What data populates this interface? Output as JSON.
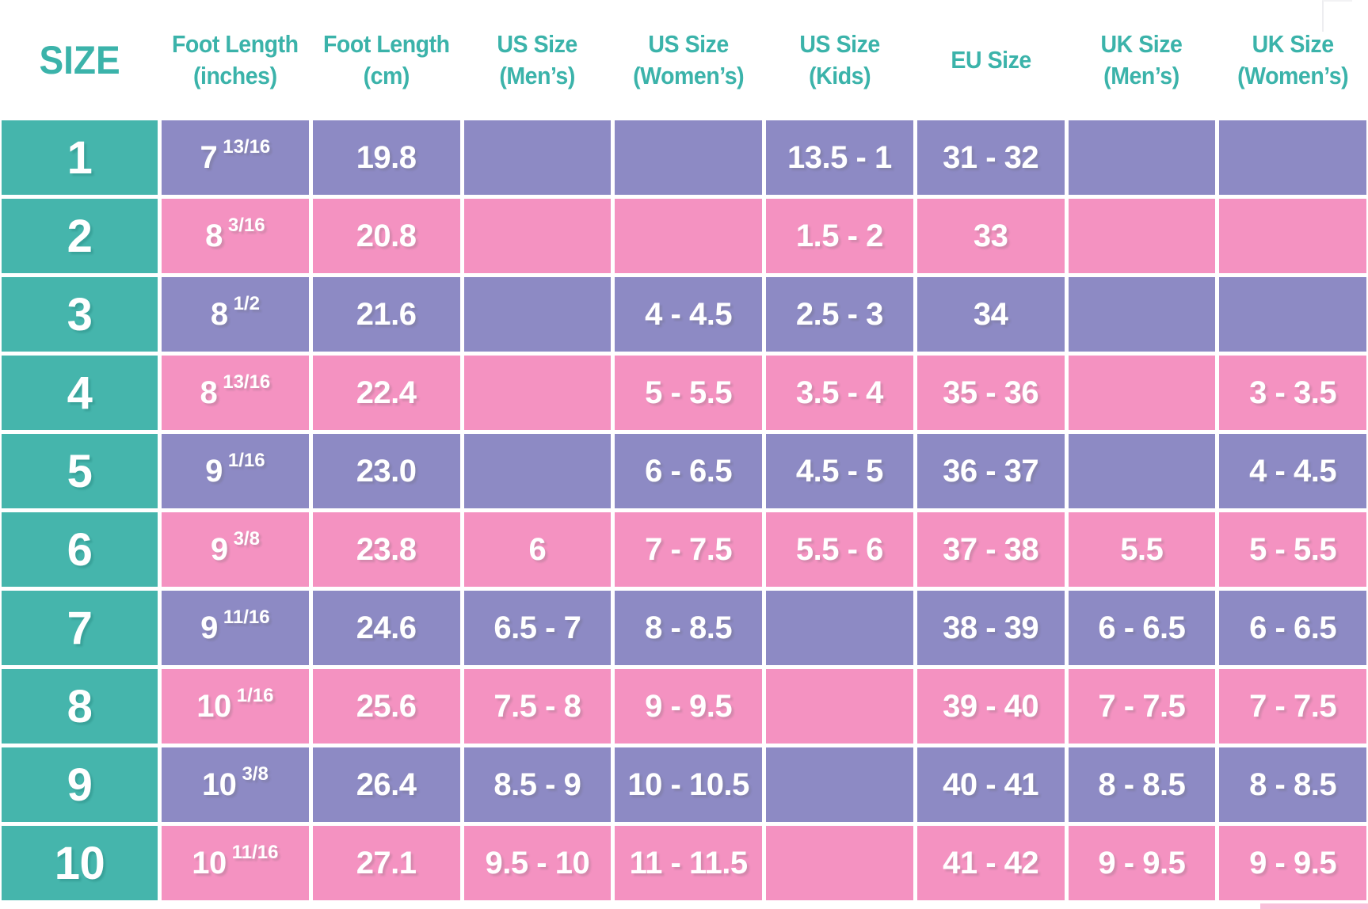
{
  "colors": {
    "teal": "#45b5ac",
    "purple": "#8d8ac4",
    "pink": "#f492c1",
    "header_text": "#3bb3aa",
    "cell_text": "#ffffff"
  },
  "table": {
    "headers": [
      {
        "key": "size",
        "line1": "SIZE",
        "line2": "",
        "big": true
      },
      {
        "key": "inches",
        "line1": "Foot Length",
        "line2": "(inches)"
      },
      {
        "key": "cm",
        "line1": "Foot Length",
        "line2": "(cm)"
      },
      {
        "key": "us-men",
        "line1": "US Size",
        "line2": "(Men’s)"
      },
      {
        "key": "us-women",
        "line1": "US Size",
        "line2": "(Women’s)"
      },
      {
        "key": "us-kids",
        "line1": "US Size",
        "line2": "(Kids)"
      },
      {
        "key": "eu",
        "line1": "EU Size",
        "line2": ""
      },
      {
        "key": "uk-men",
        "line1": "UK Size",
        "line2": "(Men’s)"
      },
      {
        "key": "uk-women",
        "line1": "UK Size",
        "line2": "(Women’s)"
      }
    ],
    "rows": [
      {
        "size": "1",
        "inches_whole": "7",
        "inches_frac": "13/16",
        "cm": "19.8",
        "us_men": "",
        "us_women": "",
        "us_kids": "13.5 - 1",
        "eu": "31 - 32",
        "uk_men": "",
        "uk_women": ""
      },
      {
        "size": "2",
        "inches_whole": "8",
        "inches_frac": "3/16",
        "cm": "20.8",
        "us_men": "",
        "us_women": "",
        "us_kids": "1.5 - 2",
        "eu": "33",
        "uk_men": "",
        "uk_women": ""
      },
      {
        "size": "3",
        "inches_whole": "8",
        "inches_frac": "1/2",
        "cm": "21.6",
        "us_men": "",
        "us_women": "4 - 4.5",
        "us_kids": "2.5 - 3",
        "eu": "34",
        "uk_men": "",
        "uk_women": ""
      },
      {
        "size": "4",
        "inches_whole": "8",
        "inches_frac": "13/16",
        "cm": "22.4",
        "us_men": "",
        "us_women": "5 - 5.5",
        "us_kids": "3.5 - 4",
        "eu": "35 - 36",
        "uk_men": "",
        "uk_women": "3 - 3.5"
      },
      {
        "size": "5",
        "inches_whole": "9",
        "inches_frac": "1/16",
        "cm": "23.0",
        "us_men": "",
        "us_women": "6 - 6.5",
        "us_kids": "4.5 - 5",
        "eu": "36 - 37",
        "uk_men": "",
        "uk_women": "4 - 4.5"
      },
      {
        "size": "6",
        "inches_whole": "9",
        "inches_frac": "3/8",
        "cm": "23.8",
        "us_men": "6",
        "us_women": "7 - 7.5",
        "us_kids": "5.5 - 6",
        "eu": "37 - 38",
        "uk_men": "5.5",
        "uk_women": "5 - 5.5"
      },
      {
        "size": "7",
        "inches_whole": "9",
        "inches_frac": "11/16",
        "cm": "24.6",
        "us_men": "6.5 - 7",
        "us_women": "8 - 8.5",
        "us_kids": "",
        "eu": "38 - 39",
        "uk_men": "6 - 6.5",
        "uk_women": "6 - 6.5"
      },
      {
        "size": "8",
        "inches_whole": "10",
        "inches_frac": "1/16",
        "cm": "25.6",
        "us_men": "7.5 - 8",
        "us_women": "9 - 9.5",
        "us_kids": "",
        "eu": "39 - 40",
        "uk_men": "7 - 7.5",
        "uk_women": "7 - 7.5"
      },
      {
        "size": "9",
        "inches_whole": "10",
        "inches_frac": "3/8",
        "cm": "26.4",
        "us_men": "8.5 - 9",
        "us_women": "10 - 10.5",
        "us_kids": "",
        "eu": "40 - 41",
        "uk_men": "8 - 8.5",
        "uk_women": "8 - 8.5"
      },
      {
        "size": "10",
        "inches_whole": "10",
        "inches_frac": "11/16",
        "cm": "27.1",
        "us_men": "9.5 - 10",
        "us_women": "11 - 11.5",
        "us_kids": "",
        "eu": "41 - 42",
        "uk_men": "9 - 9.5",
        "uk_women": "9 - 9.5"
      }
    ]
  },
  "chart_data": {
    "type": "table",
    "title": "Shoe size conversion chart",
    "columns": [
      "SIZE",
      "Foot Length (inches)",
      "Foot Length (cm)",
      "US Size (Men’s)",
      "US Size (Women’s)",
      "US Size (Kids)",
      "EU Size",
      "UK Size (Men’s)",
      "UK Size (Women’s)"
    ],
    "rows": [
      [
        "1",
        "7 13/16",
        "19.8",
        "",
        "",
        "13.5 - 1",
        "31 - 32",
        "",
        ""
      ],
      [
        "2",
        "8 3/16",
        "20.8",
        "",
        "",
        "1.5 - 2",
        "33",
        "",
        ""
      ],
      [
        "3",
        "8 1/2",
        "21.6",
        "",
        "4 - 4.5",
        "2.5 - 3",
        "34",
        "",
        ""
      ],
      [
        "4",
        "8 13/16",
        "22.4",
        "",
        "5 - 5.5",
        "3.5 - 4",
        "35 - 36",
        "",
        "3 - 3.5"
      ],
      [
        "5",
        "9 1/16",
        "23.0",
        "",
        "6 - 6.5",
        "4.5 - 5",
        "36 - 37",
        "",
        "4 - 4.5"
      ],
      [
        "6",
        "9 3/8",
        "23.8",
        "6",
        "7 - 7.5",
        "5.5 - 6",
        "37 - 38",
        "5.5",
        "5 - 5.5"
      ],
      [
        "7",
        "9 11/16",
        "24.6",
        "6.5 - 7",
        "8 - 8.5",
        "",
        "38 - 39",
        "6 - 6.5",
        "6 - 6.5"
      ],
      [
        "8",
        "10 1/16",
        "25.6",
        "7.5 - 8",
        "9 - 9.5",
        "",
        "39 - 40",
        "7 - 7.5",
        "7 - 7.5"
      ],
      [
        "9",
        "10 3/8",
        "26.4",
        "8.5 - 9",
        "10 - 10.5",
        "",
        "40 - 41",
        "8 - 8.5",
        "8 - 8.5"
      ],
      [
        "10",
        "10 11/16",
        "27.1",
        "9.5 - 10",
        "11 - 11.5",
        "",
        "41 - 42",
        "9 - 9.5",
        "9 - 9.5"
      ]
    ]
  }
}
